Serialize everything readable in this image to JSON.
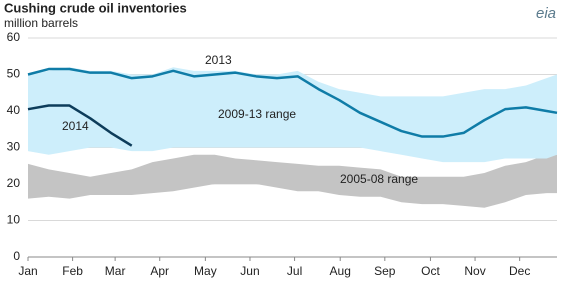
{
  "chart_data": {
    "type": "line",
    "title": "Cushing  crude oil inventories",
    "subtitle": "million barrels",
    "source_logo": "eia",
    "x": [
      1,
      3,
      5,
      7,
      9,
      11,
      13,
      15,
      17,
      19,
      21,
      23,
      25,
      27,
      29,
      31,
      33,
      35,
      37,
      39,
      41,
      43,
      45,
      47,
      49,
      51,
      52
    ],
    "xlim": [
      1,
      52
    ],
    "xticks": [
      {
        "value": 1,
        "label": "Jan"
      },
      {
        "value": 5.3,
        "label": "Feb"
      },
      {
        "value": 9.4,
        "label": "Mar"
      },
      {
        "value": 13.7,
        "label": "Apr"
      },
      {
        "value": 18.1,
        "label": "May"
      },
      {
        "value": 22.4,
        "label": "Jun"
      },
      {
        "value": 26.7,
        "label": "Jul"
      },
      {
        "value": 31.1,
        "label": "Aug"
      },
      {
        "value": 35.4,
        "label": "Sep"
      },
      {
        "value": 39.8,
        "label": "Oct"
      },
      {
        "value": 44.1,
        "label": "Nov"
      },
      {
        "value": 48.4,
        "label": "Dec"
      }
    ],
    "ylim": [
      0,
      60
    ],
    "yticks": [
      0,
      10,
      20,
      30,
      40,
      50,
      60
    ],
    "grid": true,
    "series": [
      {
        "name": "2005-08  range",
        "kind": "band",
        "color": "#c4c4c4",
        "low": [
          16,
          16.5,
          16,
          17,
          17,
          17,
          17.5,
          18,
          19,
          20,
          20,
          20,
          19,
          18,
          18,
          17,
          16.5,
          16.5,
          15,
          14.5,
          14.5,
          14,
          13.5,
          15,
          17,
          17.5,
          17.5
        ],
        "high": [
          25.5,
          24,
          23,
          22,
          23,
          24,
          26,
          27,
          28,
          28,
          27,
          26.5,
          26,
          25.5,
          25,
          25,
          24.5,
          24,
          22,
          22,
          22,
          22,
          23,
          25,
          26,
          28,
          28
        ]
      },
      {
        "name": "2009-13  range",
        "kind": "band",
        "color": "#cdeefb",
        "low": [
          29,
          28,
          29,
          30,
          30,
          29,
          29,
          30,
          30,
          30,
          30,
          30,
          30,
          30,
          30,
          30,
          30,
          29,
          28,
          27,
          26,
          26,
          26,
          27,
          27,
          27,
          28
        ],
        "high": [
          50,
          51,
          52,
          51,
          51,
          50,
          50,
          52,
          51,
          51,
          51,
          50,
          50,
          51,
          48,
          46,
          45,
          44,
          44,
          44,
          44,
          45,
          46,
          46,
          47,
          49,
          50
        ]
      },
      {
        "name": "2013",
        "kind": "line",
        "color": "#0f7ca7",
        "values": [
          50,
          51.5,
          51.5,
          50.5,
          50.5,
          49,
          49.5,
          51,
          49.5,
          50,
          50.5,
          49.5,
          49,
          49.5,
          46,
          43,
          39.5,
          37,
          34.5,
          33,
          33,
          34,
          37.5,
          40.5,
          41,
          40,
          39.5
        ]
      },
      {
        "name": "2014",
        "kind": "line",
        "color": "#0d3c5a",
        "values": [
          40.5,
          41.5,
          41.5,
          38,
          34,
          30.5,
          null,
          null,
          null,
          null,
          null,
          null,
          null,
          null,
          null,
          null,
          null,
          null,
          null,
          null,
          null,
          null,
          null,
          null,
          null,
          null,
          null
        ]
      }
    ]
  }
}
